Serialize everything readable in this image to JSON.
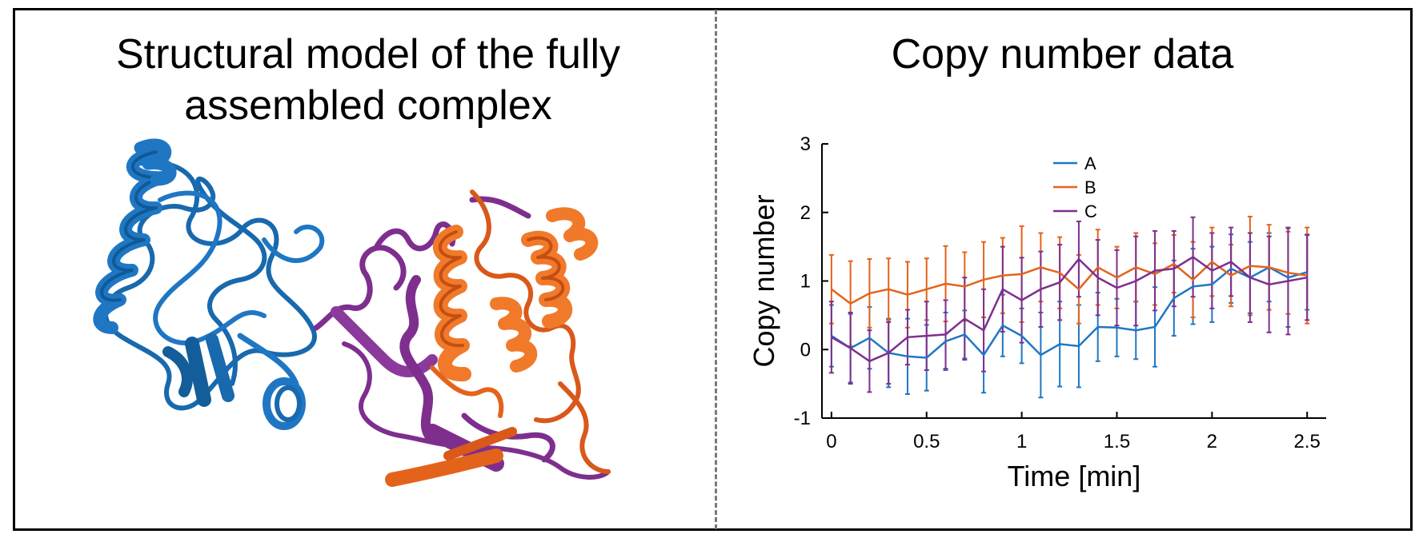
{
  "panels": {
    "left_title_line1": "Structural model of the fully",
    "left_title_line2": "assembled complex",
    "right_title": "Copy number data"
  },
  "colors": {
    "A": "#1f77c4",
    "B": "#e4631b",
    "C": "#7e2f8e",
    "frame": "#000000",
    "divider": "#7a7a7a"
  },
  "structure": {
    "chains": [
      "blue-chain",
      "purple-chain",
      "orange-chain"
    ]
  },
  "chart_data": {
    "type": "line",
    "title": "",
    "xlabel": "Time [min]",
    "ylabel": "Copy number",
    "xlim": [
      -0.05,
      2.6
    ],
    "ylim": [
      -1,
      3
    ],
    "xticks": [
      0,
      0.5,
      1,
      1.5,
      2,
      2.5
    ],
    "xtick_labels": [
      "0",
      "0.5",
      "1",
      "1.5",
      "2",
      "2.5"
    ],
    "yticks": [
      -1,
      0,
      1,
      2,
      3
    ],
    "ytick_labels": [
      "-1",
      "0",
      "1",
      "2",
      "3"
    ],
    "legend": "top-center",
    "grid": false,
    "x": [
      0,
      0.1,
      0.2,
      0.3,
      0.4,
      0.5,
      0.6,
      0.7,
      0.8,
      0.9,
      1.0,
      1.1,
      1.2,
      1.3,
      1.4,
      1.5,
      1.6,
      1.7,
      1.8,
      1.9,
      2.0,
      2.1,
      2.2,
      2.3,
      2.4,
      2.5
    ],
    "series": [
      {
        "name": "A",
        "values": [
          0.2,
          0.02,
          0.17,
          -0.05,
          -0.1,
          -0.12,
          0.12,
          0.22,
          -0.08,
          0.35,
          0.2,
          -0.08,
          0.08,
          0.05,
          0.33,
          0.32,
          0.28,
          0.33,
          0.75,
          0.92,
          0.95,
          1.18,
          1.05,
          1.2,
          1.05,
          1.13
        ],
        "errors": [
          0.45,
          0.5,
          0.45,
          0.5,
          0.55,
          0.48,
          0.42,
          0.35,
          0.55,
          0.45,
          0.4,
          0.62,
          0.62,
          0.6,
          0.5,
          0.42,
          0.42,
          0.58,
          0.55,
          0.55,
          0.55,
          0.5,
          0.52,
          0.5,
          0.72,
          0.55
        ]
      },
      {
        "name": "B",
        "values": [
          0.88,
          0.67,
          0.82,
          0.88,
          0.8,
          0.88,
          0.96,
          0.92,
          1.02,
          1.08,
          1.1,
          1.2,
          1.12,
          0.88,
          1.2,
          1.05,
          1.2,
          1.1,
          1.25,
          1.02,
          1.28,
          1.08,
          1.22,
          1.2,
          1.12,
          1.08
        ],
        "errors": [
          0.5,
          0.62,
          0.5,
          0.45,
          0.48,
          0.45,
          0.55,
          0.5,
          0.55,
          0.55,
          0.7,
          0.5,
          0.52,
          0.5,
          0.55,
          0.45,
          0.5,
          0.45,
          0.42,
          0.55,
          0.5,
          0.45,
          0.72,
          0.62,
          0.6,
          0.7
        ]
      },
      {
        "name": "C",
        "values": [
          0.18,
          0.02,
          -0.17,
          -0.05,
          0.18,
          0.2,
          0.22,
          0.45,
          0.28,
          0.88,
          0.72,
          0.88,
          0.98,
          1.32,
          1.05,
          0.9,
          1.0,
          1.15,
          1.18,
          1.35,
          1.15,
          1.28,
          1.05,
          0.95,
          1.0,
          1.05
        ],
        "errors": [
          0.52,
          0.52,
          0.45,
          0.45,
          0.4,
          0.5,
          0.5,
          0.6,
          0.6,
          0.62,
          0.62,
          0.55,
          0.55,
          0.55,
          0.55,
          0.55,
          0.65,
          0.58,
          0.55,
          0.58,
          0.55,
          0.5,
          0.65,
          0.7,
          0.78,
          0.62
        ]
      }
    ]
  }
}
